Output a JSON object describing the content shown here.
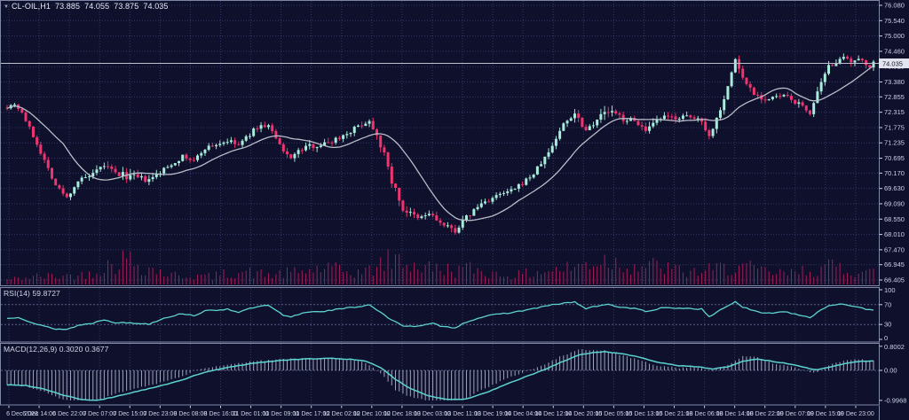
{
  "header": {
    "symbol": "CL-OIL,H1",
    "open": "73.885",
    "high": "74.055",
    "low": "73.875",
    "close": "74.035"
  },
  "colors": {
    "background": "#0e102c",
    "grid": "rgba(112,122,196,0.38)",
    "frame": "#7e87a6",
    "bull": "#a9ecdb",
    "bear": "#ee3570",
    "wick_bull": "#9fe6d4",
    "wick_bear": "#e92f6a",
    "ma_line": "#b9bdc9",
    "volume": "#a51d58",
    "indicator_line": "#5dd3cf",
    "histogram": "#b8bfd6",
    "level_dash": "rgba(150,160,215,0.55)",
    "axis_text": "#ccd2e6",
    "price_line": "#bcc0cc",
    "badge_bg": "#e2e5ef",
    "badge_text": "#12142e"
  },
  "chart_data": {
    "type": "candlestick",
    "symbol": "CL-OIL",
    "timeframe": "H1",
    "last_price": 74.035,
    "bars": 233,
    "price_axis": {
      "current": "74.035",
      "labels": [
        "76.080",
        "75.540",
        "75.000",
        "74.460",
        "73.920",
        "73.380",
        "72.855",
        "72.315",
        "71.775",
        "71.235",
        "70.695",
        "70.170",
        "69.630",
        "69.090",
        "68.550",
        "68.010",
        "67.470",
        "66.945",
        "66.405"
      ],
      "range": [
        66.405,
        76.08
      ]
    },
    "time_axis": {
      "labels": [
        "6 Dec 2023",
        "6 Dec 14:00",
        "6 Dec 22:00",
        "7 Dec 07:00",
        "7 Dec 15:00",
        "7 Dec 23:00",
        "8 Dec 08:00",
        "8 Dec 16:00",
        "11 Dec 01:00",
        "11 Dec 09:00",
        "11 Dec 17:00",
        "12 Dec 02:00",
        "12 Dec 10:00",
        "12 Dec 18:00",
        "13 Dec 03:00",
        "13 Dec 11:00",
        "13 Dec 19:00",
        "14 Dec 04:00",
        "14 Dec 12:00",
        "14 Dec 20:00",
        "15 Dec 05:00",
        "15 Dec 13:00",
        "15 Dec 21:00",
        "18 Dec 06:00",
        "18 Dec 14:00",
        "18 Dec 22:00",
        "19 Dec 07:00",
        "19 Dec 15:00",
        "19 Dec 23:00"
      ]
    },
    "price_path": [
      [
        0,
        72.5
      ],
      [
        2,
        72.62
      ],
      [
        4,
        72.3
      ],
      [
        8,
        71.2
      ],
      [
        13,
        69.75
      ],
      [
        16,
        69.3
      ],
      [
        19,
        69.9
      ],
      [
        23,
        70.1
      ],
      [
        26,
        70.45
      ],
      [
        29,
        70.15
      ],
      [
        33,
        70.05
      ],
      [
        38,
        69.9
      ],
      [
        42,
        70.3
      ],
      [
        47,
        70.75
      ],
      [
        50,
        70.6
      ],
      [
        53,
        71.05
      ],
      [
        59,
        71.3
      ],
      [
        62,
        71.15
      ],
      [
        67,
        71.8
      ],
      [
        70,
        71.85
      ],
      [
        74,
        70.9
      ],
      [
        76,
        70.75
      ],
      [
        80,
        71.1
      ],
      [
        85,
        71.2
      ],
      [
        90,
        71.5
      ],
      [
        95,
        71.9
      ],
      [
        97,
        72.0
      ],
      [
        99,
        71.55
      ],
      [
        101,
        70.8
      ],
      [
        103,
        69.9
      ],
      [
        106,
        68.9
      ],
      [
        110,
        68.55
      ],
      [
        113,
        68.75
      ],
      [
        117,
        68.3
      ],
      [
        120,
        68.15
      ],
      [
        123,
        68.6
      ],
      [
        127,
        69.1
      ],
      [
        131,
        69.35
      ],
      [
        136,
        69.6
      ],
      [
        141,
        70.15
      ],
      [
        145,
        70.9
      ],
      [
        149,
        71.9
      ],
      [
        152,
        72.3
      ],
      [
        155,
        71.7
      ],
      [
        158,
        72.1
      ],
      [
        161,
        72.35
      ],
      [
        165,
        72.1
      ],
      [
        169,
        71.95
      ],
      [
        171,
        71.6
      ],
      [
        175,
        72.1
      ],
      [
        181,
        72.15
      ],
      [
        186,
        72.05
      ],
      [
        188,
        71.45
      ],
      [
        190,
        72.1
      ],
      [
        193,
        73.2
      ],
      [
        195,
        74.2
      ],
      [
        197,
        73.5
      ],
      [
        200,
        73.0
      ],
      [
        203,
        72.75
      ],
      [
        208,
        72.9
      ],
      [
        212,
        72.6
      ],
      [
        215,
        72.3
      ],
      [
        218,
        73.3
      ],
      [
        220,
        73.9
      ],
      [
        223,
        74.25
      ],
      [
        226,
        74.05
      ],
      [
        229,
        74.15
      ],
      [
        231,
        73.95
      ],
      [
        232,
        74.035
      ]
    ],
    "volume_path": [
      [
        0,
        0.18
      ],
      [
        8,
        0.3
      ],
      [
        20,
        0.35
      ],
      [
        28,
        0.75
      ],
      [
        32,
        1.0
      ],
      [
        36,
        0.7
      ],
      [
        44,
        0.35
      ],
      [
        55,
        0.3
      ],
      [
        62,
        0.5
      ],
      [
        70,
        0.35
      ],
      [
        80,
        0.5
      ],
      [
        85,
        0.62
      ],
      [
        92,
        0.45
      ],
      [
        97,
        0.5
      ],
      [
        101,
        0.85
      ],
      [
        105,
        0.95
      ],
      [
        109,
        0.7
      ],
      [
        114,
        0.6
      ],
      [
        120,
        0.55
      ],
      [
        125,
        0.6
      ],
      [
        130,
        0.4
      ],
      [
        137,
        0.35
      ],
      [
        143,
        0.5
      ],
      [
        150,
        0.6
      ],
      [
        156,
        0.8
      ],
      [
        160,
        0.95
      ],
      [
        164,
        0.8
      ],
      [
        168,
        0.7
      ],
      [
        172,
        0.72
      ],
      [
        177,
        0.6
      ],
      [
        182,
        0.45
      ],
      [
        187,
        0.5
      ],
      [
        191,
        0.6
      ],
      [
        196,
        0.7
      ],
      [
        200,
        0.55
      ],
      [
        205,
        0.42
      ],
      [
        210,
        0.4
      ],
      [
        214,
        0.55
      ],
      [
        219,
        0.6
      ],
      [
        222,
        0.7
      ],
      [
        226,
        0.55
      ],
      [
        230,
        0.5
      ],
      [
        232,
        0.45
      ]
    ],
    "overlays": [
      {
        "name": "moving-average",
        "period": 16
      }
    ],
    "panels": {
      "rsi": {
        "label": "RSI(14) 59.8727",
        "value": 59.8727,
        "axis_labels": [
          "100",
          "70",
          "30",
          "0"
        ],
        "axis_values": [
          100,
          70,
          30,
          0
        ],
        "dashed_levels": [
          70,
          30
        ],
        "path": [
          [
            0,
            42
          ],
          [
            3,
            45
          ],
          [
            8,
            30
          ],
          [
            13,
            21
          ],
          [
            16,
            20
          ],
          [
            19,
            28
          ],
          [
            23,
            33
          ],
          [
            26,
            40
          ],
          [
            29,
            34
          ],
          [
            33,
            33
          ],
          [
            38,
            31
          ],
          [
            42,
            43
          ],
          [
            47,
            52
          ],
          [
            50,
            48
          ],
          [
            53,
            57
          ],
          [
            59,
            61
          ],
          [
            62,
            55
          ],
          [
            67,
            66
          ],
          [
            70,
            68
          ],
          [
            74,
            48
          ],
          [
            76,
            45
          ],
          [
            80,
            55
          ],
          [
            85,
            57
          ],
          [
            90,
            62
          ],
          [
            95,
            67
          ],
          [
            97,
            70
          ],
          [
            99,
            60
          ],
          [
            103,
            38
          ],
          [
            106,
            28
          ],
          [
            110,
            26
          ],
          [
            114,
            32
          ],
          [
            117,
            25
          ],
          [
            120,
            24
          ],
          [
            123,
            35
          ],
          [
            127,
            45
          ],
          [
            131,
            50
          ],
          [
            136,
            55
          ],
          [
            141,
            62
          ],
          [
            145,
            68
          ],
          [
            149,
            73
          ],
          [
            152,
            75
          ],
          [
            155,
            62
          ],
          [
            158,
            67
          ],
          [
            161,
            70
          ],
          [
            165,
            64
          ],
          [
            169,
            62
          ],
          [
            171,
            55
          ],
          [
            175,
            63
          ],
          [
            181,
            63
          ],
          [
            186,
            61
          ],
          [
            188,
            45
          ],
          [
            190,
            55
          ],
          [
            193,
            68
          ],
          [
            195,
            76
          ],
          [
            197,
            65
          ],
          [
            200,
            57
          ],
          [
            203,
            52
          ],
          [
            208,
            56
          ],
          [
            212,
            50
          ],
          [
            215,
            44
          ],
          [
            218,
            60
          ],
          [
            220,
            68
          ],
          [
            223,
            72
          ],
          [
            226,
            66
          ],
          [
            228,
            64
          ],
          [
            230,
            61
          ],
          [
            232,
            59.87
          ]
        ]
      },
      "macd": {
        "label": "MACD(12,26,9) 0.3020 0.3677",
        "main_value": 0.302,
        "signal_value": 0.3677,
        "axis_labels": [
          "0.8002",
          "0.00",
          "-0.9968"
        ],
        "axis_values": [
          0.8002,
          0,
          -0.9968
        ],
        "dashed_levels": [
          0
        ],
        "path": [
          [
            0,
            -0.48
          ],
          [
            5,
            -0.5
          ],
          [
            10,
            -0.62
          ],
          [
            15,
            -0.82
          ],
          [
            20,
            -0.97
          ],
          [
            24,
            -1.0
          ],
          [
            28,
            -0.9
          ],
          [
            34,
            -0.72
          ],
          [
            40,
            -0.55
          ],
          [
            46,
            -0.35
          ],
          [
            52,
            -0.1
          ],
          [
            56,
            0.02
          ],
          [
            61,
            0.14
          ],
          [
            66,
            0.24
          ],
          [
            73,
            0.33
          ],
          [
            80,
            0.38
          ],
          [
            86,
            0.4
          ],
          [
            92,
            0.37
          ],
          [
            96,
            0.3
          ],
          [
            100,
            0.1
          ],
          [
            104,
            -0.3
          ],
          [
            108,
            -0.6
          ],
          [
            113,
            -0.85
          ],
          [
            118,
            -0.97
          ],
          [
            123,
            -0.95
          ],
          [
            128,
            -0.75
          ],
          [
            133,
            -0.5
          ],
          [
            138,
            -0.25
          ],
          [
            143,
            -0.02
          ],
          [
            148,
            0.25
          ],
          [
            153,
            0.5
          ],
          [
            157,
            0.6
          ],
          [
            160,
            0.62
          ],
          [
            165,
            0.55
          ],
          [
            170,
            0.42
          ],
          [
            175,
            0.25
          ],
          [
            180,
            0.15
          ],
          [
            185,
            0.12
          ],
          [
            189,
            0.05
          ],
          [
            193,
            0.12
          ],
          [
            197,
            0.3
          ],
          [
            201,
            0.37
          ],
          [
            205,
            0.3
          ],
          [
            210,
            0.2
          ],
          [
            214,
            0.08
          ],
          [
            217,
            0.02
          ],
          [
            220,
            0.1
          ],
          [
            224,
            0.22
          ],
          [
            228,
            0.3
          ],
          [
            232,
            0.31
          ]
        ]
      }
    }
  }
}
